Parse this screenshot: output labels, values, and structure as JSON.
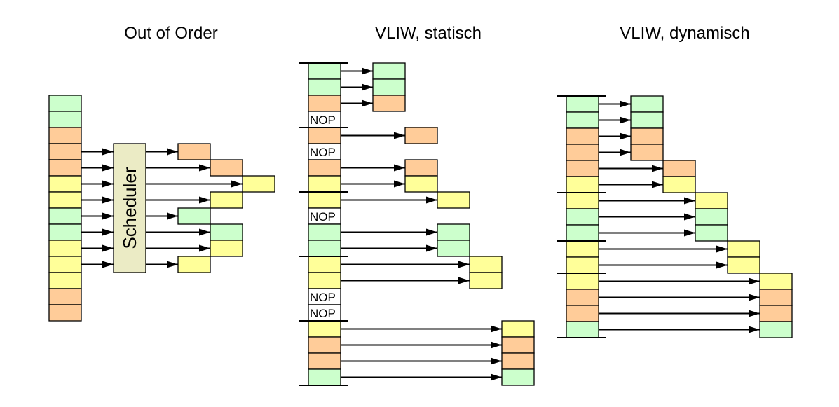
{
  "colors": {
    "G": "#ccffcc",
    "O": "#ffcc99",
    "Y": "#ffff99",
    "N": "#ffffff",
    "scheduler": "#ebebc5"
  },
  "titles": {
    "ooo": "Out of Order",
    "vliw_static": "VLIW, statisch",
    "vliw_dynamic": "VLIW, dynamisch"
  },
  "nop_label": "NOP",
  "scheduler_label": "Scheduler",
  "out_of_order": {
    "stream": [
      "G",
      "G",
      "O",
      "O",
      "O",
      "Y",
      "Y",
      "G",
      "G",
      "Y",
      "Y",
      "Y",
      "O",
      "O"
    ],
    "issued": [
      {
        "row": 3,
        "slot": 0
      },
      {
        "row": 4,
        "slot": 1
      },
      {
        "row": 5,
        "slot": 2
      },
      {
        "row": 6,
        "slot": 1
      },
      {
        "row": 7,
        "slot": 0
      },
      {
        "row": 8,
        "slot": 1
      },
      {
        "row": 9,
        "slot": 1
      },
      {
        "row": 10,
        "slot": 0
      }
    ]
  },
  "vliw_static": {
    "stream": [
      "G",
      "G",
      "O",
      "N",
      "O",
      "N",
      "O",
      "Y",
      "Y",
      "N",
      "G",
      "G",
      "Y",
      "Y",
      "N",
      "N",
      "Y",
      "O",
      "O",
      "G"
    ],
    "bundle_boundaries": [
      0,
      4,
      8,
      12,
      16,
      20
    ],
    "issued": [
      {
        "row": 0,
        "slot": 0
      },
      {
        "row": 1,
        "slot": 0
      },
      {
        "row": 2,
        "slot": 0
      },
      {
        "row": 4,
        "slot": 1
      },
      {
        "row": 6,
        "slot": 1
      },
      {
        "row": 7,
        "slot": 1
      },
      {
        "row": 8,
        "slot": 2
      },
      {
        "row": 10,
        "slot": 2
      },
      {
        "row": 11,
        "slot": 2
      },
      {
        "row": 12,
        "slot": 3
      },
      {
        "row": 13,
        "slot": 3
      },
      {
        "row": 16,
        "slot": 4
      },
      {
        "row": 17,
        "slot": 4
      },
      {
        "row": 18,
        "slot": 4
      },
      {
        "row": 19,
        "slot": 4
      }
    ]
  },
  "vliw_dynamic": {
    "stream": [
      "G",
      "G",
      "O",
      "O",
      "O",
      "Y",
      "Y",
      "G",
      "G",
      "Y",
      "Y",
      "Y",
      "O",
      "O",
      "G"
    ],
    "bundle_boundaries": [
      0,
      6,
      9,
      11,
      15
    ],
    "issued": [
      {
        "row": 0,
        "slot": 0
      },
      {
        "row": 1,
        "slot": 0
      },
      {
        "row": 2,
        "slot": 0
      },
      {
        "row": 3,
        "slot": 0
      },
      {
        "row": 4,
        "slot": 1
      },
      {
        "row": 5,
        "slot": 1
      },
      {
        "row": 6,
        "slot": 2
      },
      {
        "row": 7,
        "slot": 2
      },
      {
        "row": 8,
        "slot": 2
      },
      {
        "row": 9,
        "slot": 3
      },
      {
        "row": 10,
        "slot": 3
      },
      {
        "row": 11,
        "slot": 4
      },
      {
        "row": 12,
        "slot": 4
      },
      {
        "row": 13,
        "slot": 4
      },
      {
        "row": 14,
        "slot": 4
      }
    ]
  }
}
